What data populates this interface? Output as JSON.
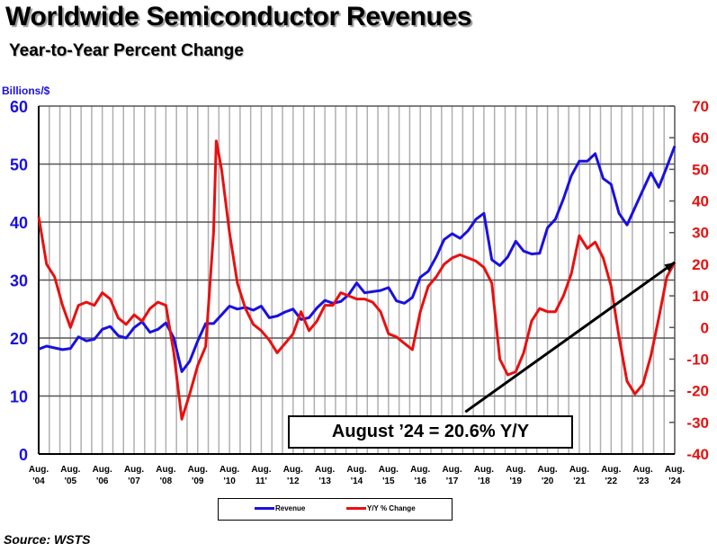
{
  "title": "Worldwide Semiconductor Revenues",
  "subtitle": "Year-to-Year Percent Change",
  "source": "Source: WSTS",
  "colors": {
    "revenue": "#1a10e0",
    "yoy": "#e81010",
    "arrow": "#000000"
  },
  "chart_data": {
    "type": "line",
    "title": "Worldwide Semiconductor Revenues",
    "subtitle": "Year-to-Year Percent Change",
    "xlim": [
      "2004-08",
      "2024-08"
    ],
    "x_ticks": [
      {
        "l1": "Aug.",
        "l2": "'04",
        "x": "2004-08"
      },
      {
        "l1": "Aug.",
        "l2": "'05",
        "x": "2005-08"
      },
      {
        "l1": "Aug.",
        "l2": "'06",
        "x": "2006-08"
      },
      {
        "l1": "Aug.",
        "l2": "'07",
        "x": "2007-08"
      },
      {
        "l1": "Aug.",
        "l2": "'08",
        "x": "2008-08"
      },
      {
        "l1": "Aug.",
        "l2": "'09",
        "x": "2009-08"
      },
      {
        "l1": "Aug.",
        "l2": "'10",
        "x": "2010-08"
      },
      {
        "l1": "Aug.",
        "l2": "11'",
        "x": "2011-08"
      },
      {
        "l1": "Aug.",
        "l2": "'12",
        "x": "2012-08"
      },
      {
        "l1": "Aug.",
        "l2": "'13",
        "x": "2013-08"
      },
      {
        "l1": "Aug.",
        "l2": "'14",
        "x": "2014-08"
      },
      {
        "l1": "Aug.",
        "l2": "'15",
        "x": "2015-08"
      },
      {
        "l1": "Aug.",
        "l2": "'16",
        "x": "2016-08"
      },
      {
        "l1": "Aug.",
        "l2": "'17",
        "x": "2017-08"
      },
      {
        "l1": "Aug.",
        "l2": "'18",
        "x": "2018-08"
      },
      {
        "l1": "Aug.",
        "l2": "'19",
        "x": "2019-08"
      },
      {
        "l1": "Aug.",
        "l2": "'20",
        "x": "2020-08"
      },
      {
        "l1": "Aug.",
        "l2": "'21",
        "x": "2021-08"
      },
      {
        "l1": "Aug.",
        "l2": "'22",
        "x": "2022-08"
      },
      {
        "l1": "Aug.",
        "l2": "'23",
        "x": "2023-08"
      },
      {
        "l1": "Aug.",
        "l2": "'24",
        "x": "2024-08"
      }
    ],
    "y_left": {
      "label": "Billions/$",
      "range": [
        0,
        60
      ],
      "ticks": [
        "0",
        "10",
        "20",
        "30",
        "40",
        "50",
        "60"
      ]
    },
    "y_right": {
      "label": "",
      "range": [
        -40,
        70
      ],
      "ticks": [
        "-40",
        "-30",
        "-20",
        "-10",
        "0",
        "10",
        "20",
        "30",
        "40",
        "50",
        "60",
        "70"
      ]
    },
    "grid": true,
    "legend_position": "bottom",
    "series": [
      {
        "name": "Revenue",
        "axis": "left",
        "points": [
          [
            "2004-08",
            18.1
          ],
          [
            "2004-11",
            18.6
          ],
          [
            "2005-02",
            18.3
          ],
          [
            "2005-05",
            18.0
          ],
          [
            "2005-08",
            18.2
          ],
          [
            "2005-11",
            20.2
          ],
          [
            "2006-02",
            19.5
          ],
          [
            "2006-05",
            19.8
          ],
          [
            "2006-08",
            21.5
          ],
          [
            "2006-11",
            22.0
          ],
          [
            "2007-02",
            20.4
          ],
          [
            "2007-05",
            20.0
          ],
          [
            "2007-08",
            21.8
          ],
          [
            "2007-11",
            22.8
          ],
          [
            "2008-02",
            21.0
          ],
          [
            "2008-05",
            21.5
          ],
          [
            "2008-08",
            22.6
          ],
          [
            "2008-11",
            20.0
          ],
          [
            "2009-02",
            14.2
          ],
          [
            "2009-05",
            16.0
          ],
          [
            "2009-08",
            19.5
          ],
          [
            "2009-11",
            22.5
          ],
          [
            "2010-02",
            22.5
          ],
          [
            "2010-05",
            24.0
          ],
          [
            "2010-08",
            25.5
          ],
          [
            "2010-11",
            25.0
          ],
          [
            "2011-02",
            25.3
          ],
          [
            "2011-05",
            24.8
          ],
          [
            "2011-08",
            25.5
          ],
          [
            "2011-11",
            23.5
          ],
          [
            "2012-02",
            23.8
          ],
          [
            "2012-05",
            24.5
          ],
          [
            "2012-08",
            25.0
          ],
          [
            "2012-11",
            23.2
          ],
          [
            "2013-02",
            23.5
          ],
          [
            "2013-05",
            25.2
          ],
          [
            "2013-08",
            26.5
          ],
          [
            "2013-11",
            26.0
          ],
          [
            "2014-02",
            26.3
          ],
          [
            "2014-05",
            27.5
          ],
          [
            "2014-08",
            29.5
          ],
          [
            "2014-11",
            27.8
          ],
          [
            "2015-02",
            28.0
          ],
          [
            "2015-05",
            28.2
          ],
          [
            "2015-08",
            28.7
          ],
          [
            "2015-11",
            26.4
          ],
          [
            "2016-02",
            26.0
          ],
          [
            "2016-05",
            27.0
          ],
          [
            "2016-08",
            30.5
          ],
          [
            "2016-11",
            31.5
          ],
          [
            "2017-02",
            34.0
          ],
          [
            "2017-05",
            37.0
          ],
          [
            "2017-08",
            38.0
          ],
          [
            "2017-11",
            37.2
          ],
          [
            "2018-02",
            38.5
          ],
          [
            "2018-05",
            40.5
          ],
          [
            "2018-08",
            41.5
          ],
          [
            "2018-11",
            33.5
          ],
          [
            "2019-02",
            32.5
          ],
          [
            "2019-05",
            34.0
          ],
          [
            "2019-08",
            36.7
          ],
          [
            "2019-11",
            35.0
          ],
          [
            "2020-02",
            34.5
          ],
          [
            "2020-05",
            34.6
          ],
          [
            "2020-08",
            39.0
          ],
          [
            "2020-11",
            40.5
          ],
          [
            "2021-02",
            44.0
          ],
          [
            "2021-05",
            48.0
          ],
          [
            "2021-08",
            50.5
          ],
          [
            "2021-11",
            50.5
          ],
          [
            "2022-02",
            51.8
          ],
          [
            "2022-05",
            47.5
          ],
          [
            "2022-08",
            46.5
          ],
          [
            "2022-11",
            41.5
          ],
          [
            "2023-02",
            39.5
          ],
          [
            "2023-05",
            42.5
          ],
          [
            "2023-08",
            45.5
          ],
          [
            "2023-11",
            48.5
          ],
          [
            "2024-02",
            46.0
          ],
          [
            "2024-05",
            49.5
          ],
          [
            "2024-08",
            53.1
          ]
        ]
      },
      {
        "name": "Y/Y % Change",
        "axis": "right",
        "points": [
          [
            "2004-08",
            35
          ],
          [
            "2004-11",
            20
          ],
          [
            "2005-02",
            16
          ],
          [
            "2005-05",
            7
          ],
          [
            "2005-08",
            0
          ],
          [
            "2005-11",
            7
          ],
          [
            "2006-02",
            8
          ],
          [
            "2006-05",
            7
          ],
          [
            "2006-08",
            11
          ],
          [
            "2006-11",
            9
          ],
          [
            "2007-02",
            3
          ],
          [
            "2007-05",
            1
          ],
          [
            "2007-08",
            4
          ],
          [
            "2007-11",
            2
          ],
          [
            "2008-02",
            6
          ],
          [
            "2008-05",
            8
          ],
          [
            "2008-08",
            7
          ],
          [
            "2008-11",
            -8
          ],
          [
            "2009-02",
            -29
          ],
          [
            "2009-05",
            -21
          ],
          [
            "2009-08",
            -12
          ],
          [
            "2009-11",
            -6
          ],
          [
            "2010-02",
            30
          ],
          [
            "2010-03",
            59
          ],
          [
            "2010-05",
            50
          ],
          [
            "2010-08",
            30
          ],
          [
            "2010-11",
            14
          ],
          [
            "2011-02",
            6
          ],
          [
            "2011-05",
            1
          ],
          [
            "2011-08",
            -1
          ],
          [
            "2011-11",
            -4
          ],
          [
            "2012-02",
            -8
          ],
          [
            "2012-05",
            -5
          ],
          [
            "2012-08",
            -2
          ],
          [
            "2012-11",
            5
          ],
          [
            "2013-02",
            -1
          ],
          [
            "2013-05",
            2
          ],
          [
            "2013-08",
            7
          ],
          [
            "2013-11",
            7
          ],
          [
            "2014-02",
            11
          ],
          [
            "2014-05",
            10
          ],
          [
            "2014-08",
            9
          ],
          [
            "2014-11",
            9
          ],
          [
            "2015-02",
            8
          ],
          [
            "2015-05",
            5
          ],
          [
            "2015-08",
            -2
          ],
          [
            "2015-11",
            -3
          ],
          [
            "2016-02",
            -5
          ],
          [
            "2016-05",
            -7
          ],
          [
            "2016-08",
            5
          ],
          [
            "2016-11",
            13
          ],
          [
            "2017-02",
            16
          ],
          [
            "2017-05",
            20
          ],
          [
            "2017-08",
            22
          ],
          [
            "2017-11",
            23
          ],
          [
            "2018-02",
            22
          ],
          [
            "2018-05",
            21
          ],
          [
            "2018-08",
            19
          ],
          [
            "2018-11",
            14
          ],
          [
            "2019-02",
            -10
          ],
          [
            "2019-05",
            -15
          ],
          [
            "2019-08",
            -14
          ],
          [
            "2019-11",
            -8
          ],
          [
            "2020-02",
            2
          ],
          [
            "2020-05",
            6
          ],
          [
            "2020-08",
            5
          ],
          [
            "2020-11",
            5
          ],
          [
            "2021-02",
            10
          ],
          [
            "2021-05",
            17
          ],
          [
            "2021-08",
            29
          ],
          [
            "2021-11",
            25
          ],
          [
            "2022-02",
            27
          ],
          [
            "2022-05",
            22
          ],
          [
            "2022-08",
            13
          ],
          [
            "2022-11",
            -3
          ],
          [
            "2023-02",
            -17
          ],
          [
            "2023-05",
            -21
          ],
          [
            "2023-08",
            -18
          ],
          [
            "2023-11",
            -9
          ],
          [
            "2024-02",
            3
          ],
          [
            "2024-05",
            16
          ],
          [
            "2024-08",
            20.6
          ]
        ]
      }
    ],
    "annotation": {
      "text": "August ’24 = 20.6% Y/Y",
      "arrow_from": [
        "2018-01",
        -26.7
      ],
      "arrow_to": [
        "2024-08",
        20.6
      ]
    }
  }
}
